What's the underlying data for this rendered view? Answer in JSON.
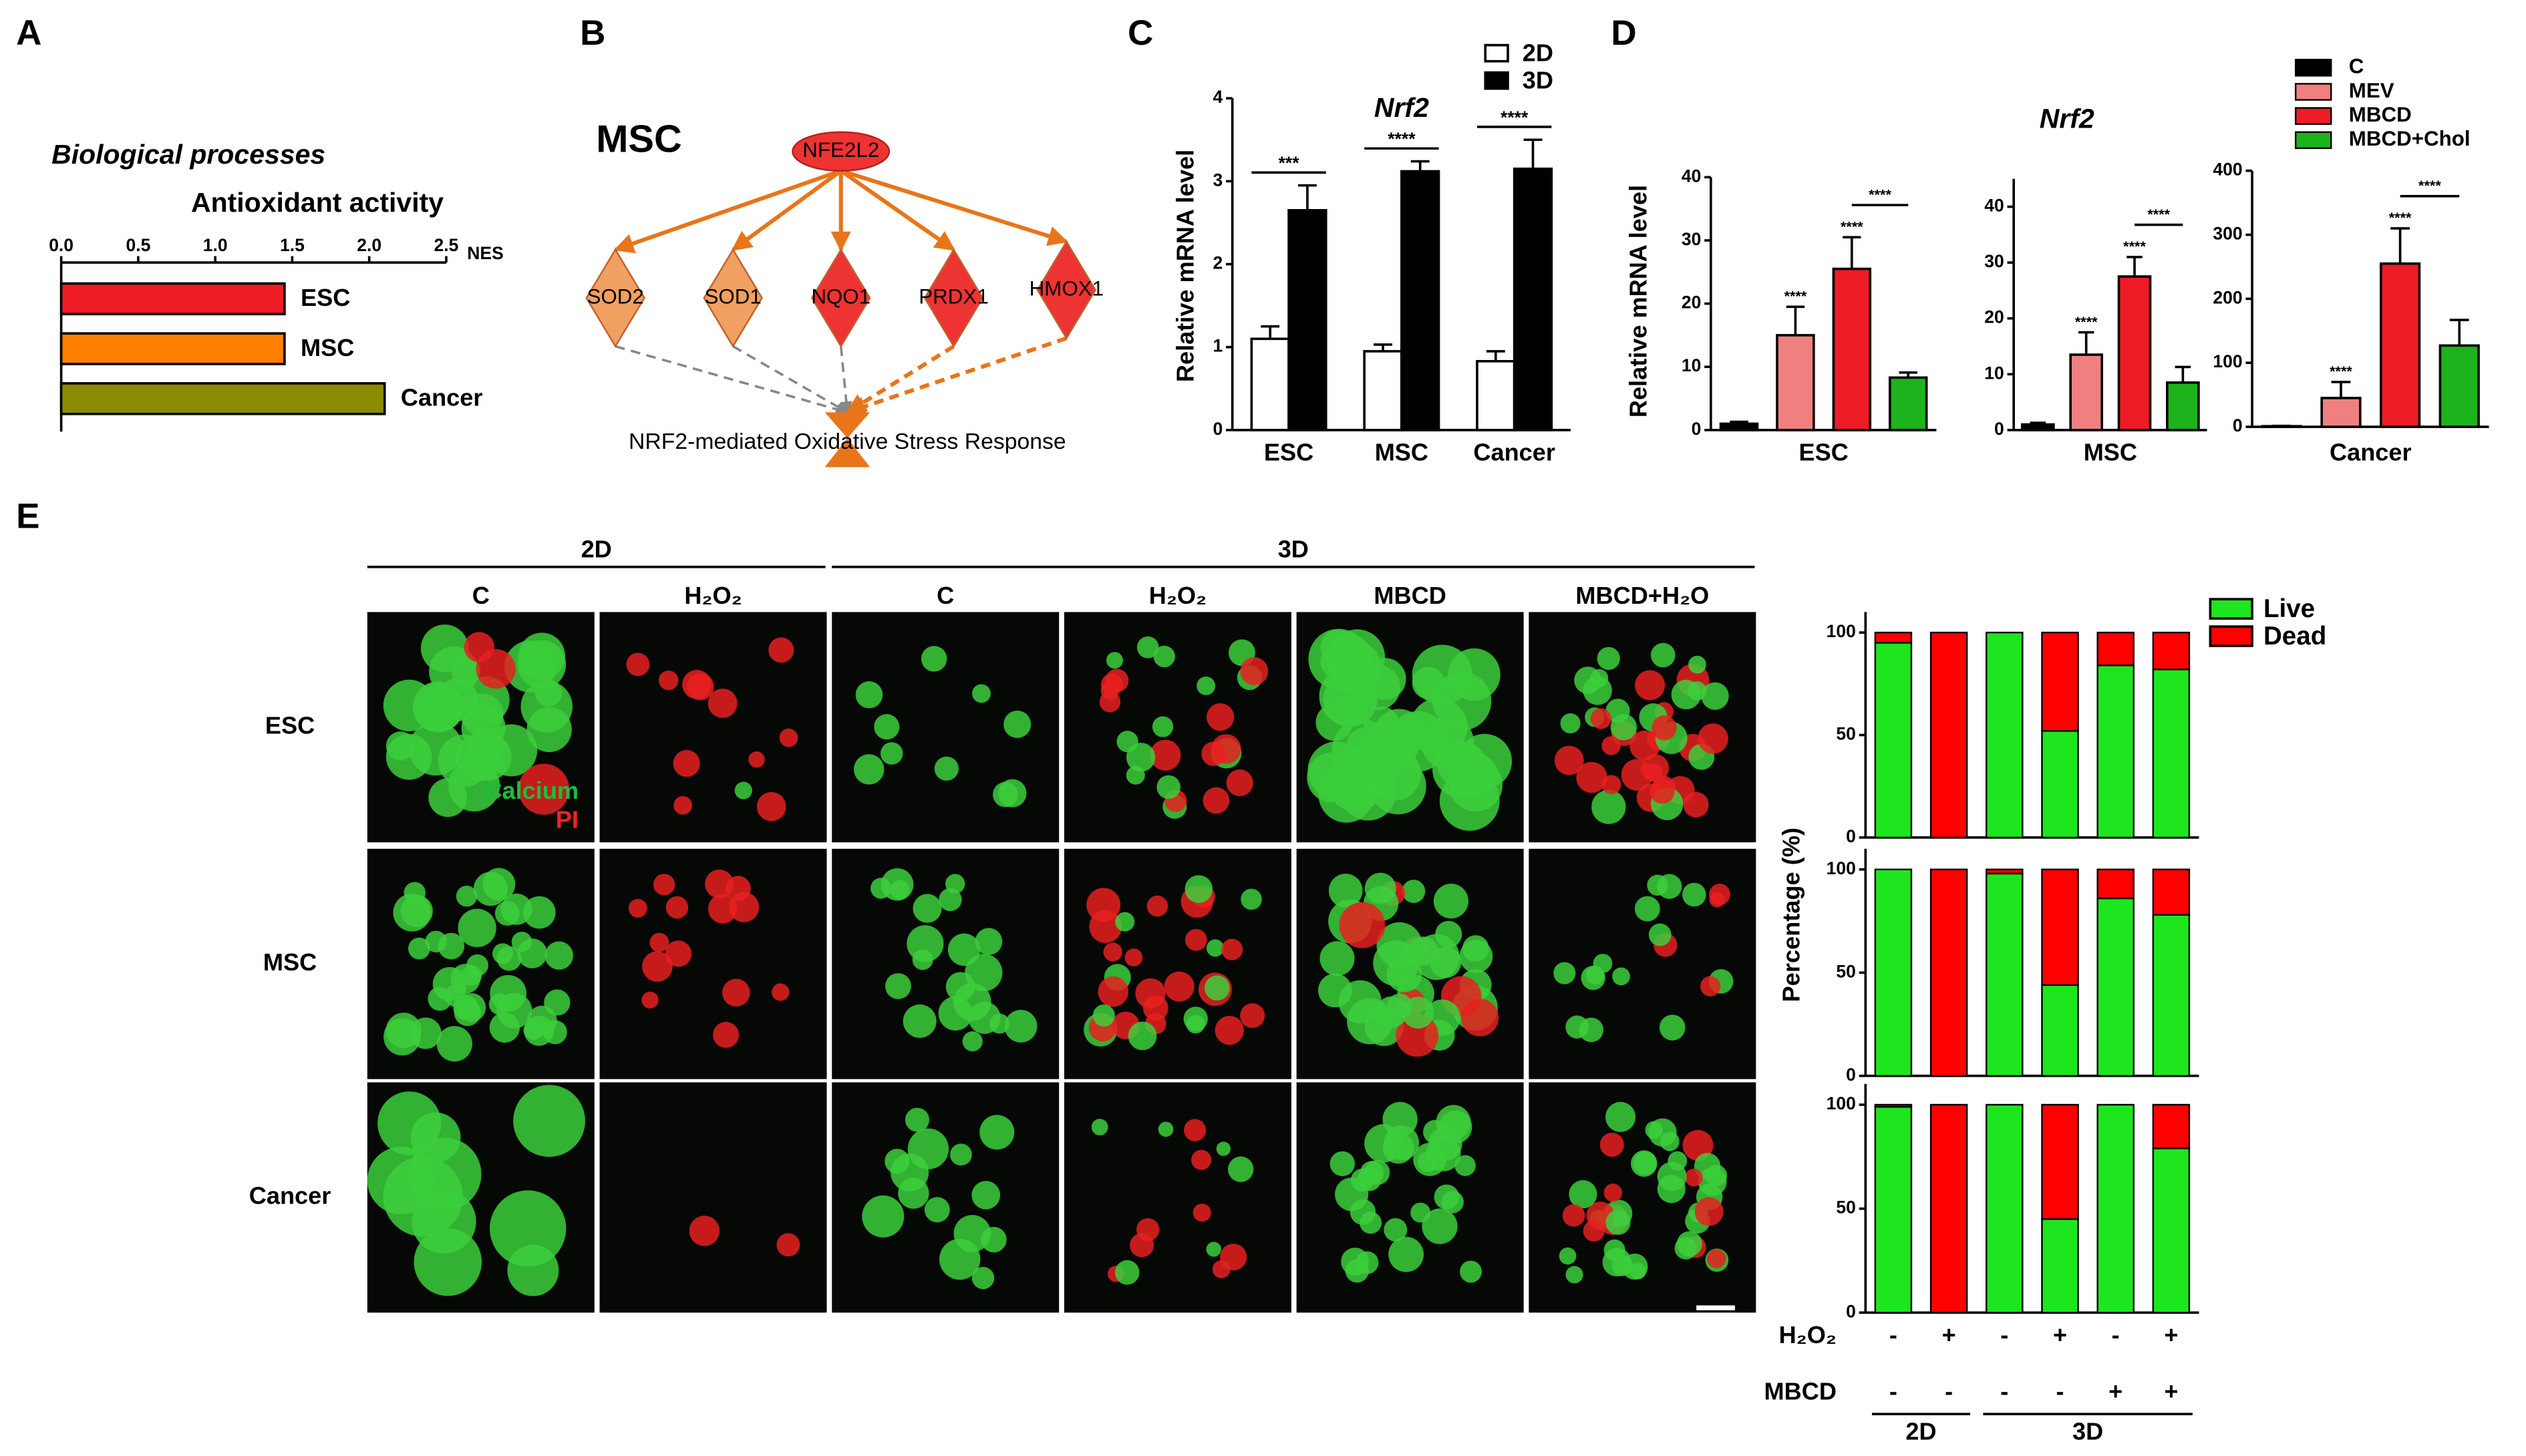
{
  "chart_data": [
    {
      "panel": "A",
      "type": "hbar",
      "title": "Biological processes",
      "subtitle": "Antioxidant activity",
      "xlabel": "NES",
      "categories": [
        "ESC",
        "MSC",
        "Cancer"
      ],
      "values": [
        1.45,
        1.45,
        2.1
      ],
      "colors": [
        "#ee1c25",
        "#ff8000",
        "#8c8c00"
      ],
      "xlim": [
        0,
        2.5
      ],
      "xticks": [
        {
          "value": 0,
          "label": "0.0"
        },
        {
          "value": 0.5,
          "label": "0.5"
        },
        {
          "value": 1,
          "label": "1.0"
        },
        {
          "value": 1.5,
          "label": "1.5"
        },
        {
          "value": 2,
          "label": "2.0"
        },
        {
          "value": 2.5,
          "label": "2.5"
        }
      ]
    },
    {
      "panel": "C",
      "type": "bar",
      "title": "Nrf2",
      "ylabel": "Relative mRNA level",
      "categories": [
        "ESC",
        "MSC",
        "Cancer"
      ],
      "series": [
        {
          "name": "2D",
          "color": "#ffffff",
          "values": [
            1.1,
            0.95,
            0.83
          ],
          "errors": [
            0.15,
            0.08,
            0.12
          ]
        },
        {
          "name": "3D",
          "color": "#000000",
          "values": [
            2.65,
            3.12,
            3.15
          ],
          "errors": [
            0.3,
            0.12,
            0.35
          ]
        }
      ],
      "sig": [
        "***",
        "****",
        "****"
      ],
      "ylim": [
        0,
        4
      ],
      "yticks": [
        0,
        1,
        2,
        3,
        4
      ]
    },
    {
      "panel": "D",
      "type": "bar",
      "title": "Nrf2",
      "ylabel": "Relative mRNA level",
      "series": [
        {
          "name": "C",
          "color": "#000000"
        },
        {
          "name": "MEV",
          "color": "#f08080"
        },
        {
          "name": "MBCD",
          "color": "#ee1c25"
        },
        {
          "name": "MBCD+Chol",
          "color": "#1db31d"
        }
      ],
      "subplots": [
        {
          "xlabel": "ESC",
          "values": [
            1,
            15,
            25.5,
            8.3
          ],
          "errors": [
            0.3,
            4.5,
            5,
            0.8
          ],
          "sig": [
            null,
            "****",
            "****",
            null
          ],
          "bracket": "****",
          "ylim": [
            0,
            40
          ],
          "yticks": [
            0,
            10,
            20,
            30,
            40
          ]
        },
        {
          "xlabel": "MSC",
          "values": [
            1,
            13.5,
            27.5,
            8.5
          ],
          "errors": [
            0.3,
            4,
            3.5,
            2.8
          ],
          "sig": [
            null,
            "****",
            "****",
            null
          ],
          "bracket": "****",
          "ylim": [
            0,
            45
          ],
          "yticks": [
            0,
            10,
            20,
            30,
            40
          ]
        },
        {
          "xlabel": "Cancer",
          "values": [
            1,
            45,
            255,
            127
          ],
          "errors": [
            0.5,
            25,
            55,
            40
          ],
          "sig": [
            null,
            "****",
            "****",
            null
          ],
          "bracket": "****",
          "ylim": [
            0,
            400
          ],
          "yticks": [
            0,
            100,
            200,
            300,
            400
          ]
        }
      ]
    },
    {
      "panel": "E",
      "type": "stacked",
      "ylabel": "Percentage (%)",
      "series": [
        {
          "name": "Live",
          "color": "#1ee61e"
        },
        {
          "name": "Dead",
          "color": "#ff0000"
        }
      ],
      "subplots": [
        {
          "values": [
            [
              95,
              0,
              100,
              52,
              84,
              82
            ],
            [
              5,
              100,
              0,
              48,
              16,
              18
            ]
          ]
        },
        {
          "values": [
            [
              100,
              0,
              98,
              44,
              86,
              78
            ],
            [
              0,
              100,
              2,
              56,
              14,
              22
            ]
          ]
        },
        {
          "values": [
            [
              99,
              0,
              100,
              45,
              100,
              79
            ],
            [
              1,
              100,
              0,
              55,
              0,
              21
            ]
          ]
        }
      ],
      "ylim": [
        0,
        110
      ],
      "yticks": [
        0,
        50,
        100
      ],
      "conditions": [
        {
          "label": "H₂O₂",
          "values": [
            "-",
            "+",
            "-",
            "+",
            "-",
            "+"
          ]
        },
        {
          "label": "MBCD",
          "values": [
            "-",
            "-",
            "-",
            "-",
            "+",
            "+"
          ]
        }
      ],
      "groups": [
        {
          "label": "2D",
          "count": 2
        },
        {
          "label": "3D",
          "count": 4
        }
      ]
    }
  ],
  "diagram": {
    "panel": "B",
    "title": "MSC",
    "nodes": [
      {
        "label": "NFE2L2",
        "shape": "ellipse",
        "color": "#ee3333"
      },
      {
        "label": "SOD2",
        "shape": "diamond",
        "color": "#f0a060"
      },
      {
        "label": "SOD1",
        "shape": "diamond",
        "color": "#f0a060"
      },
      {
        "label": "NQO1",
        "shape": "diamond",
        "color": "#ee3333"
      },
      {
        "label": "PRDX1",
        "shape": "diamond",
        "color": "#ee3333"
      },
      {
        "label": "HMOX1",
        "shape": "diamond",
        "color": "#ee3333"
      },
      {
        "label": "NRF2-mediated Oxidative Stress Response",
        "shape": "hourglass",
        "color": "#e8751a"
      }
    ],
    "edges": [
      {
        "from": 0,
        "to": 1,
        "color": "#e8751a",
        "dashed": false
      },
      {
        "from": 0,
        "to": 2,
        "color": "#e8751a",
        "dashed": false
      },
      {
        "from": 0,
        "to": 3,
        "color": "#e8751a",
        "dashed": false
      },
      {
        "from": 0,
        "to": 4,
        "color": "#e8751a",
        "dashed": false
      },
      {
        "from": 0,
        "to": 5,
        "color": "#e8751a",
        "dashed": false
      },
      {
        "from": 1,
        "to": 6,
        "color": "#888888",
        "dashed": true
      },
      {
        "from": 2,
        "to": 6,
        "color": "#888888",
        "dashed": true
      },
      {
        "from": 3,
        "to": 6,
        "color": "#888888",
        "dashed": true
      },
      {
        "from": 4,
        "to": 6,
        "color": "#e8751a",
        "dashed": true
      },
      {
        "from": 5,
        "to": 6,
        "color": "#e8751a",
        "dashed": true
      }
    ]
  },
  "images": {
    "col_groups": [
      {
        "label": "2D",
        "count": 2
      },
      {
        "label": "3D",
        "count": 4
      }
    ],
    "columns": [
      "C",
      "H₂O₂",
      "C",
      "H₂O₂",
      "MBCD",
      "MBCD+H₂O"
    ],
    "rows": [
      "ESC",
      "MSC",
      "Cancer"
    ],
    "stain_labels": [
      "Calcium",
      "PI"
    ]
  }
}
